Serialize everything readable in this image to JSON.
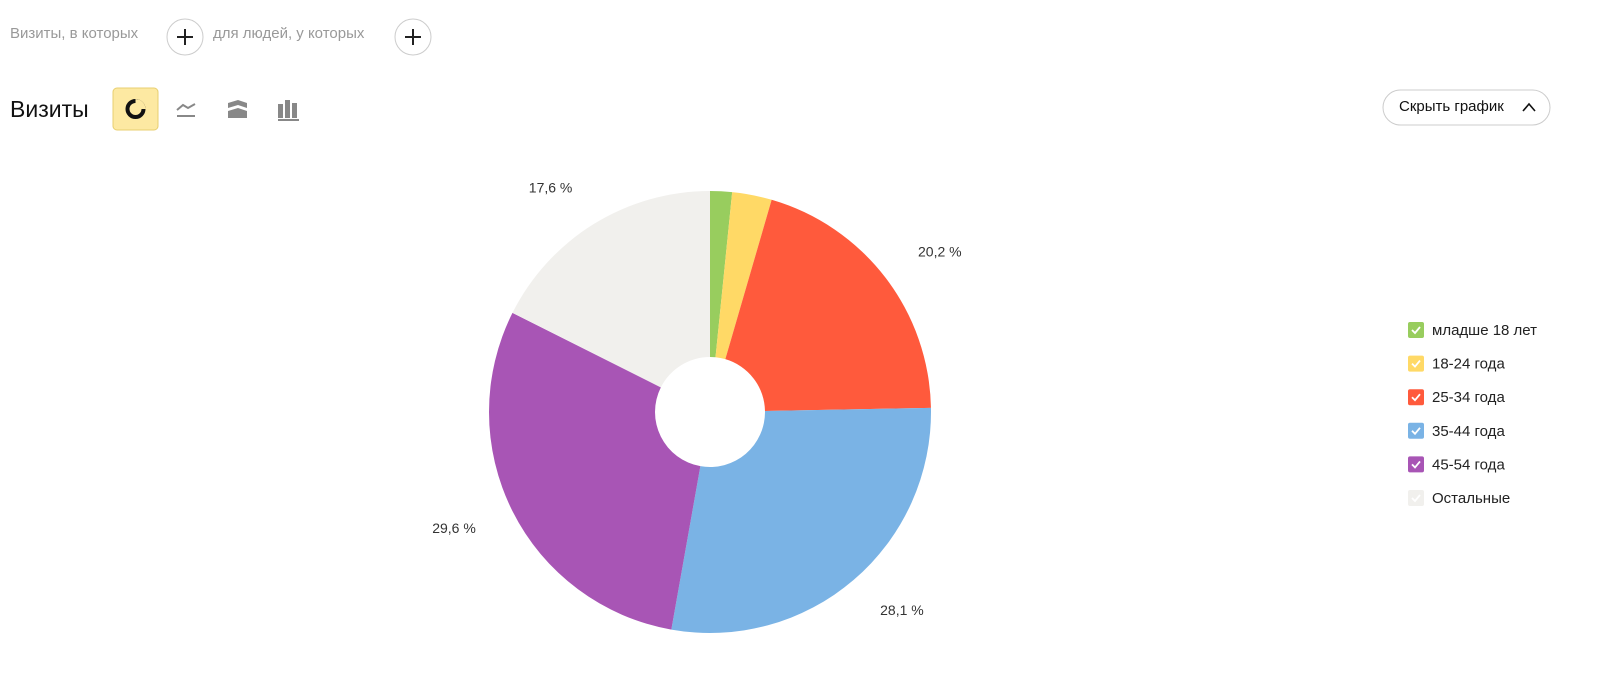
{
  "filters": {
    "visits_label": "Визиты, в которых",
    "people_label": "для людей, у которых"
  },
  "header": {
    "title": "Визиты",
    "hide_button": "Скрыть график"
  },
  "chart_data": {
    "type": "pie",
    "categories": [
      "младше 18 лет",
      "18-24 года",
      "25-34 года",
      "35-44 года",
      "45-54 года",
      "Остальные"
    ],
    "values": [
      1.6,
      2.9,
      20.2,
      28.1,
      29.6,
      17.6
    ],
    "value_labels": [
      null,
      null,
      "20,2 %",
      "28,1 %",
      "29,6 %",
      "17,6 %"
    ],
    "colors": [
      "#98cd5e",
      "#ffd966",
      "#ff5a3c",
      "#7ab3e5",
      "#a855b5",
      "#f1f0ed"
    ]
  }
}
